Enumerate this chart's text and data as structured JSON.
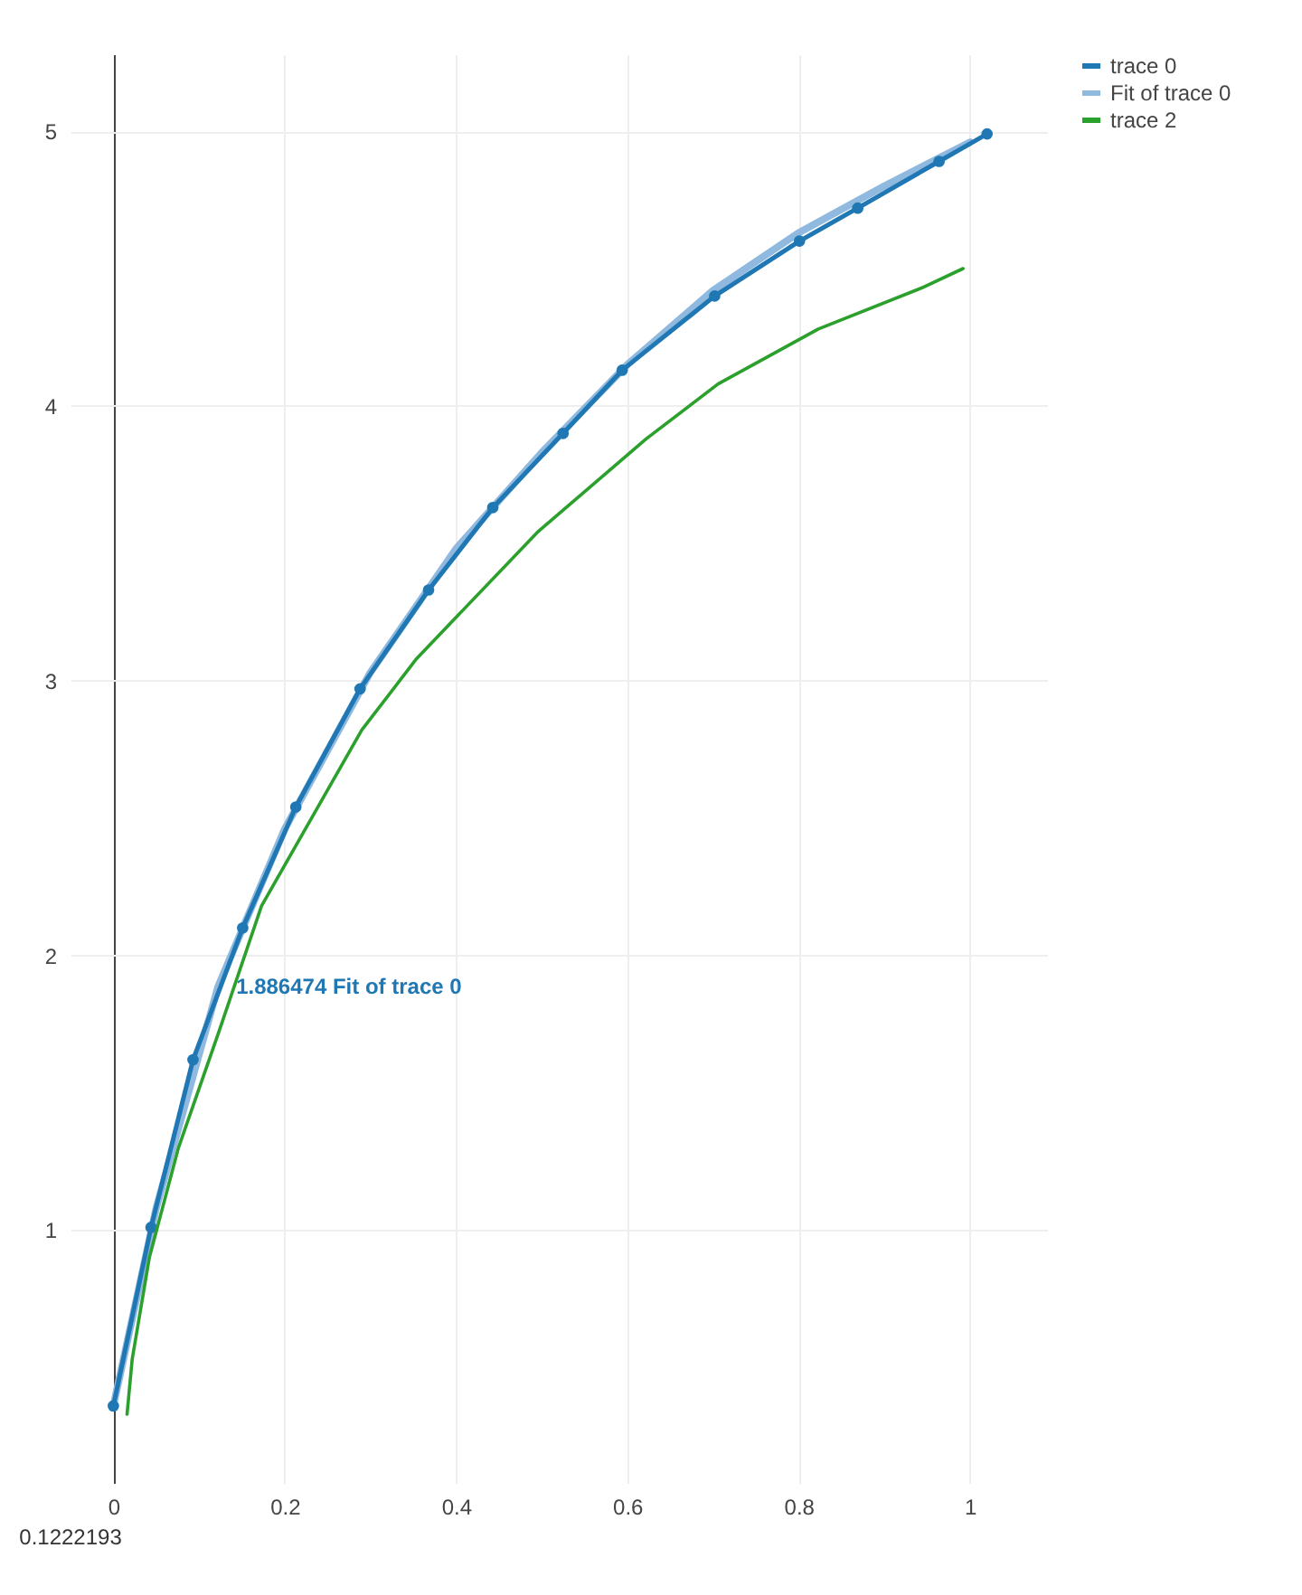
{
  "chart_data": {
    "type": "line",
    "xlim": [
      -0.05,
      1.09
    ],
    "xticks": [
      0,
      0.2,
      0.4,
      0.6,
      0.8,
      1
    ],
    "ylim": [
      0.08,
      5.28
    ],
    "yticks": [
      1,
      2,
      3,
      4,
      5
    ],
    "grid": true,
    "legend": "top right",
    "series": [
      {
        "name": "trace 0",
        "color": "#1f77b4",
        "marker": "circle",
        "x": [
          0,
          0.044,
          0.093,
          0.151,
          0.213,
          0.288,
          0.368,
          0.443,
          0.525,
          0.594,
          0.702,
          0.801,
          0.869,
          0.964,
          1.02
        ],
        "values": [
          0.36,
          1.01,
          1.62,
          2.1,
          2.54,
          2.97,
          3.33,
          3.63,
          3.9,
          4.13,
          4.4,
          4.6,
          4.72,
          4.89,
          4.99
        ]
      },
      {
        "name": "Fit of trace 0",
        "color": "#8fb9df",
        "x": [
          0,
          0.05,
          0.1222193,
          0.2,
          0.3,
          0.4,
          0.5,
          0.6,
          0.7,
          0.8,
          0.9,
          1.0
        ],
        "values": [
          0.36,
          1.08,
          1.886474,
          2.46,
          3.03,
          3.48,
          3.83,
          4.15,
          4.42,
          4.63,
          4.8,
          4.96
        ]
      },
      {
        "name": "trace 2",
        "color": "#2ca02c",
        "x": [
          0.016,
          0.022,
          0.042,
          0.076,
          0.123,
          0.173,
          0.29,
          0.354,
          0.495,
          0.622,
          0.706,
          0.823,
          0.944,
          0.992
        ],
        "values": [
          0.33,
          0.53,
          0.9,
          1.3,
          1.72,
          2.18,
          2.82,
          3.08,
          3.54,
          3.88,
          4.08,
          4.28,
          4.43,
          4.5
        ]
      }
    ],
    "annotations": [
      {
        "text": "1.886474 Fit of trace 0",
        "x": 0.1222193,
        "y": 1.886474
      },
      "0.1222193"
    ]
  }
}
